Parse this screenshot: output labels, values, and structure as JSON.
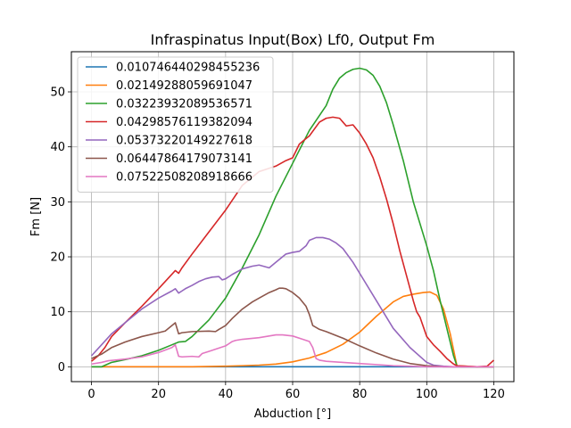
{
  "chart_data": {
    "type": "line",
    "title": "Infraspinatus Input(Box) Lf0, Output Fm",
    "xlabel": "Abduction [°]",
    "ylabel": "Fm [N]",
    "xlim": [
      -6,
      126
    ],
    "ylim": [
      -2.7,
      57.3
    ],
    "xticks": [
      0,
      20,
      40,
      60,
      80,
      100,
      120
    ],
    "yticks": [
      0,
      10,
      20,
      30,
      40,
      50
    ],
    "grid": true,
    "legend_position": "top-left",
    "series": [
      {
        "name": "0.010746440298455236",
        "color": "#1f77b4",
        "x": [
          0,
          10,
          20,
          30,
          40,
          50,
          60,
          70,
          80,
          90,
          100,
          110,
          120
        ],
        "y": [
          0,
          0,
          0,
          0,
          0,
          0,
          0,
          0,
          0,
          0,
          0,
          0,
          0
        ]
      },
      {
        "name": "0.02149288059691047",
        "color": "#ff7f0e",
        "x": [
          0,
          10,
          20,
          30,
          40,
          45,
          50,
          55,
          60,
          65,
          70,
          75,
          80,
          85,
          90,
          93,
          96,
          99,
          101,
          103,
          105,
          107,
          109,
          115,
          120
        ],
        "y": [
          0,
          0,
          0,
          0,
          0.1,
          0.2,
          0.3,
          0.5,
          0.9,
          1.6,
          2.6,
          4.1,
          6.3,
          9.2,
          11.8,
          12.8,
          13.2,
          13.5,
          13.6,
          13.0,
          10.5,
          6.0,
          0.2,
          0,
          0
        ]
      },
      {
        "name": "0.03223932089536571",
        "color": "#2ca02c",
        "x": [
          0,
          3,
          6,
          10,
          15,
          20,
          24,
          26,
          28,
          30,
          35,
          40,
          45,
          50,
          55,
          60,
          65,
          70,
          72,
          74,
          76,
          78,
          80,
          82,
          84,
          86,
          88,
          90,
          93,
          96,
          98,
          100,
          102,
          104,
          106,
          108,
          109,
          110,
          115,
          120
        ],
        "y": [
          0,
          0,
          0.8,
          1.3,
          2.0,
          3.0,
          4.0,
          4.5,
          4.6,
          5.5,
          8.5,
          12.5,
          18.0,
          24.0,
          31.0,
          37.0,
          43.0,
          47.5,
          50.5,
          52.5,
          53.5,
          54.1,
          54.3,
          54.0,
          53.0,
          51.0,
          48.0,
          44.0,
          37.5,
          30.0,
          26.0,
          22.0,
          17.5,
          12.0,
          7.0,
          2.0,
          0.2,
          0,
          0,
          0
        ]
      },
      {
        "name": "0.04298576119382094",
        "color": "#d62728",
        "x": [
          0,
          2,
          4,
          6,
          10,
          15,
          20,
          25,
          26,
          27,
          30,
          35,
          40,
          45,
          50,
          55,
          58,
          60,
          62,
          64,
          65,
          68,
          70,
          72,
          74,
          75,
          76,
          78,
          80,
          82,
          84,
          86,
          88,
          90,
          92,
          94,
          96,
          97,
          98,
          100,
          102,
          104,
          106,
          108,
          109,
          115,
          118,
          120
        ],
        "y": [
          1.0,
          2.0,
          3.5,
          5.5,
          8.0,
          11.0,
          14.2,
          17.5,
          17.0,
          18.0,
          20.5,
          24.5,
          28.5,
          33.0,
          35.5,
          36.5,
          37.5,
          38.0,
          40.5,
          41.5,
          42.0,
          44.5,
          45.2,
          45.4,
          45.2,
          44.5,
          43.8,
          44.0,
          42.5,
          40.5,
          38.0,
          34.5,
          30.5,
          26.0,
          21.0,
          16.5,
          12.0,
          10.0,
          9.0,
          5.5,
          4.0,
          2.8,
          1.5,
          0.5,
          0.2,
          0.0,
          0.1,
          1.2
        ]
      },
      {
        "name": "0.05373220149227618",
        "color": "#9467bd",
        "x": [
          0,
          3,
          6,
          10,
          15,
          20,
          24,
          25,
          26,
          27,
          28,
          30,
          32,
          34,
          36,
          38,
          39,
          40,
          42,
          45,
          48,
          50,
          53,
          55,
          58,
          60,
          62,
          64,
          65,
          67,
          69,
          71,
          73,
          75,
          78,
          80,
          85,
          90,
          95,
          100,
          102,
          105,
          108,
          110,
          115,
          120
        ],
        "y": [
          2.0,
          4.0,
          6.0,
          8.0,
          10.5,
          12.5,
          13.8,
          14.2,
          13.4,
          13.8,
          14.2,
          14.8,
          15.5,
          16.0,
          16.3,
          16.4,
          15.8,
          16.0,
          16.8,
          17.8,
          18.3,
          18.5,
          18.0,
          19.0,
          20.5,
          20.8,
          21.0,
          22.0,
          23.0,
          23.5,
          23.5,
          23.2,
          22.5,
          21.5,
          19.0,
          17.0,
          12.0,
          7.0,
          3.5,
          0.8,
          0.3,
          0.1,
          0.0,
          0.0,
          0.0,
          0.0
        ]
      },
      {
        "name": "0.06447864179073141",
        "color": "#8c564b",
        "x": [
          0,
          3,
          6,
          10,
          15,
          20,
          22,
          25,
          26,
          27,
          30,
          35,
          37,
          38,
          40,
          42,
          45,
          48,
          50,
          53,
          55,
          56,
          57,
          58,
          60,
          62,
          64,
          65,
          66,
          68,
          70,
          75,
          80,
          85,
          90,
          95,
          100,
          105,
          110,
          115,
          120
        ],
        "y": [
          1.5,
          2.3,
          3.5,
          4.5,
          5.5,
          6.2,
          6.5,
          8.0,
          6.0,
          6.2,
          6.4,
          6.5,
          6.4,
          6.8,
          7.5,
          8.8,
          10.5,
          11.8,
          12.5,
          13.5,
          14.0,
          14.3,
          14.3,
          14.2,
          13.5,
          12.5,
          11.0,
          9.5,
          7.5,
          6.8,
          6.4,
          5.2,
          3.8,
          2.5,
          1.4,
          0.6,
          0.2,
          0.0,
          0.0,
          0.0,
          0.0
        ]
      },
      {
        "name": "0.07522508208918666",
        "color": "#e377c2",
        "x": [
          0,
          3,
          5,
          10,
          15,
          20,
          24,
          25,
          26,
          27,
          30,
          32,
          33,
          35,
          40,
          42,
          43,
          45,
          50,
          55,
          57,
          60,
          63,
          65,
          66,
          67,
          68,
          70,
          75,
          80,
          85,
          90,
          95,
          100,
          105,
          110,
          115,
          120
        ],
        "y": [
          0.5,
          0.8,
          1.1,
          1.4,
          1.8,
          2.6,
          3.5,
          4.0,
          1.9,
          1.8,
          1.9,
          1.8,
          2.4,
          2.8,
          3.8,
          4.6,
          4.8,
          5.0,
          5.3,
          5.8,
          5.8,
          5.6,
          5.0,
          4.6,
          3.5,
          1.5,
          1.2,
          1.0,
          0.8,
          0.6,
          0.4,
          0.2,
          0.1,
          0.0,
          0.0,
          0.0,
          0.0,
          0.0
        ]
      }
    ]
  }
}
